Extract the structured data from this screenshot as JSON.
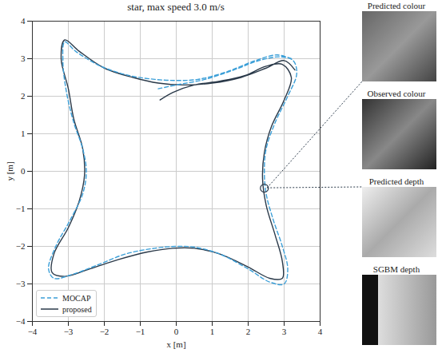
{
  "chart_data": {
    "type": "line",
    "title": "star, max speed 3.0 m/s",
    "x_label": "x [m]",
    "y_label": "y [m]",
    "xlim": [
      -4,
      4
    ],
    "ylim": [
      -4,
      4
    ],
    "xticks": [
      -4,
      -3,
      -2,
      -1,
      0,
      1,
      2,
      3,
      4
    ],
    "yticks": [
      -4,
      -3,
      -2,
      -1,
      0,
      1,
      2,
      3,
      4
    ],
    "grid": true,
    "legend": "lower left",
    "series": [
      {
        "name": "MOCAP",
        "color": "#3b9fd8",
        "line_style": "dashed",
        "x": [
          -0.5,
          0,
          0.8,
          1.6,
          2.3,
          2.9,
          3.25,
          3.35,
          3.1,
          2.75,
          2.5,
          2.45,
          2.5,
          2.7,
          2.95,
          3.1,
          3.0,
          2.6,
          2.0,
          1.2,
          0.5,
          0,
          -0.6,
          -1.4,
          -2.2,
          -2.9,
          -3.4,
          -3.55,
          -3.35,
          -2.95,
          -2.6,
          -2.5,
          -2.6,
          -2.85,
          -3.05,
          -3.15,
          -3.1,
          -2.8,
          -2.1,
          -1.3,
          -0.6,
          0,
          0.6,
          1.4,
          2.2,
          2.8,
          3.2
        ],
        "y": [
          2.2,
          2.3,
          2.45,
          2.7,
          2.95,
          3.05,
          2.95,
          2.6,
          2.0,
          1.3,
          0.6,
          0,
          -0.6,
          -1.3,
          -2.0,
          -2.6,
          -3.0,
          -2.95,
          -2.6,
          -2.2,
          -2.02,
          -2.0,
          -2.05,
          -2.2,
          -2.5,
          -2.75,
          -2.85,
          -2.6,
          -2.0,
          -1.3,
          -0.6,
          0,
          0.6,
          1.3,
          2.1,
          2.9,
          3.45,
          3.2,
          2.8,
          2.55,
          2.45,
          2.42,
          2.45,
          2.65,
          2.95,
          3.1,
          3.0
        ]
      },
      {
        "name": "proposed",
        "color": "#2b3a4a",
        "line_style": "solid",
        "x": [
          -0.45,
          -0.1,
          0.5,
          1.2,
          1.9,
          2.5,
          2.95,
          3.2,
          3.0,
          2.65,
          2.45,
          2.4,
          2.5,
          2.75,
          2.95,
          2.95,
          2.6,
          2.0,
          1.2,
          0.5,
          -0.1,
          -0.8,
          -1.6,
          -2.4,
          -3.1,
          -3.45,
          -3.4,
          -3.0,
          -2.7,
          -2.55,
          -2.6,
          -2.85,
          -3.0,
          -3.2,
          -3.1,
          -2.7,
          -2.0,
          -1.2,
          -0.5,
          0.2,
          1.0,
          1.8,
          2.5,
          3.0,
          3.3
        ],
        "y": [
          1.9,
          2.1,
          2.3,
          2.4,
          2.55,
          2.8,
          2.85,
          2.5,
          1.9,
          1.2,
          0.5,
          -0.2,
          -0.9,
          -1.7,
          -2.4,
          -2.85,
          -2.85,
          -2.55,
          -2.2,
          -2.05,
          -2.05,
          -2.15,
          -2.35,
          -2.6,
          -2.8,
          -2.7,
          -2.2,
          -1.5,
          -0.8,
          -0.1,
          0.6,
          1.4,
          2.2,
          3.0,
          3.5,
          3.2,
          2.75,
          2.5,
          2.35,
          2.3,
          2.35,
          2.5,
          2.75,
          2.95,
          2.7
        ]
      }
    ],
    "highlight": {
      "x": 2.45,
      "y": -0.45
    },
    "image_labels": [
      "Predicted colour",
      "Observed colour",
      "Predicted depth",
      "SGBM depth"
    ]
  }
}
